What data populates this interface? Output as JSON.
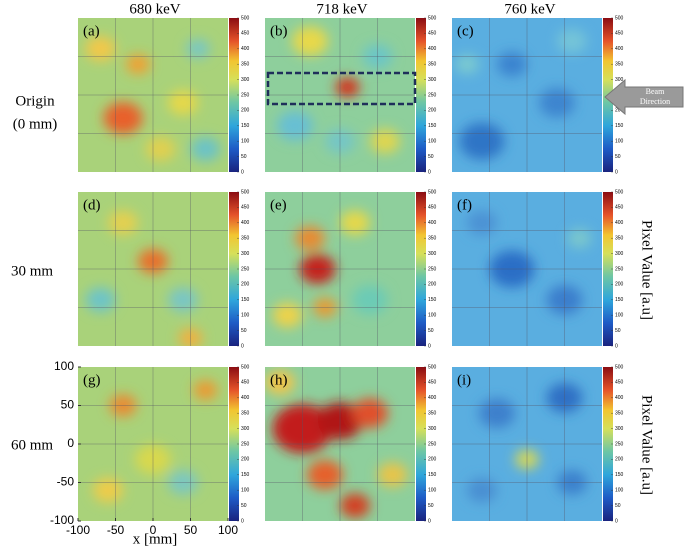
{
  "column_titles": [
    "680 keV",
    "718 keV",
    "760 keV"
  ],
  "row_labels": [
    [
      "Origin",
      "(0 mm)"
    ],
    [
      "30 mm"
    ],
    [
      "60 mm"
    ]
  ],
  "panels": [
    "(a)",
    "(b)",
    "(c)",
    "(d)",
    "(e)",
    "(f)",
    "(g)",
    "(h)",
    "(i)"
  ],
  "colorbar_ticks": [
    0,
    50,
    100,
    150,
    200,
    250,
    300,
    350,
    400,
    450,
    500
  ],
  "colorbar_label": "Pixel Value [a.u]",
  "beam_label": [
    "Beam",
    "Direction"
  ],
  "x_axis": {
    "label": "x [mm]",
    "ticks": [
      -100,
      -50,
      0,
      50,
      100
    ]
  },
  "y_axis": {
    "ticks": [
      -100,
      -50,
      0,
      50,
      100
    ]
  }
}
